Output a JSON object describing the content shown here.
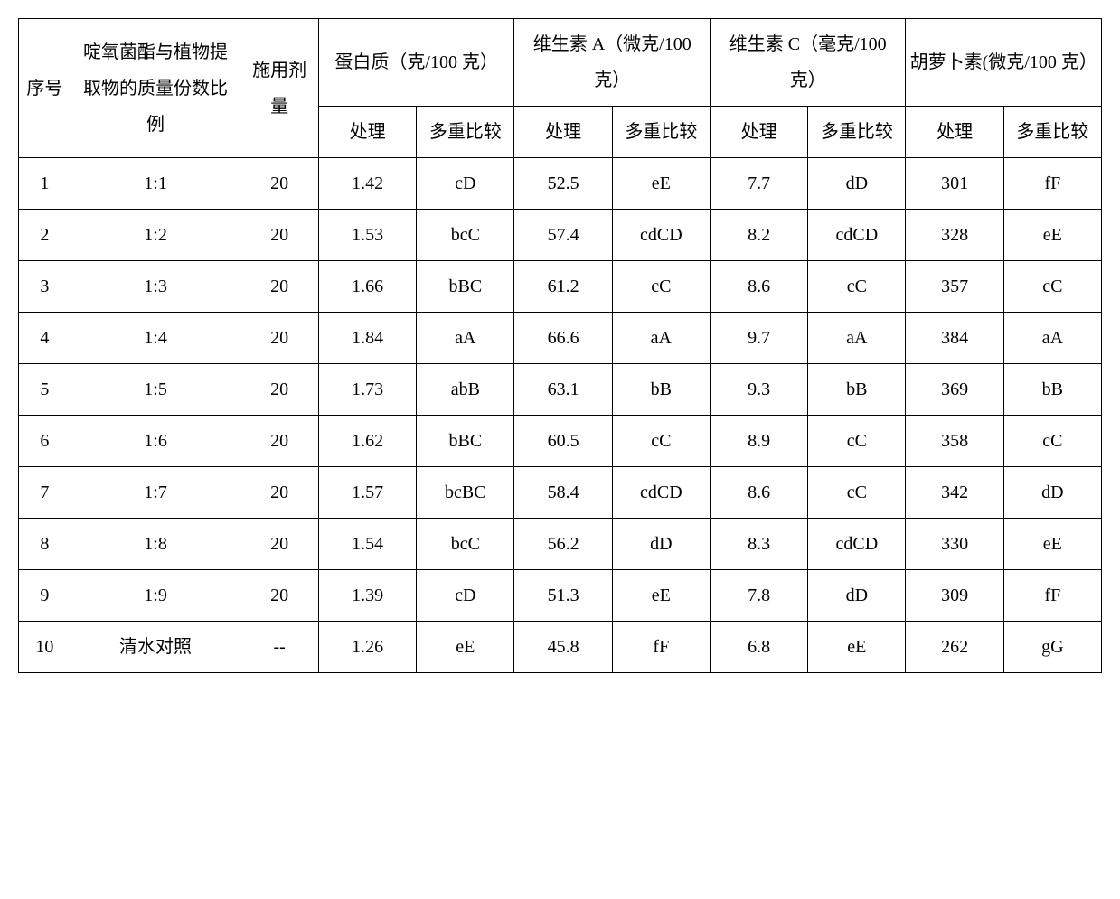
{
  "headers": {
    "seq": "序号",
    "ratio": "啶氧菌酯与植物提取物的质量份数比例",
    "dose": "施用剂量",
    "groups": [
      {
        "title": "蛋白质（克/100 克）",
        "sub1": "处理",
        "sub2": "多重比较"
      },
      {
        "title": "维生素 A（微克/100 克）",
        "sub1": "处理",
        "sub2": "多重比较"
      },
      {
        "title": "维生素 C（毫克/100 克）",
        "sub1": "处理",
        "sub2": "多重比较"
      },
      {
        "title": "胡萝卜素(微克/100 克）",
        "sub1": "处理",
        "sub2": "多重比较"
      }
    ]
  },
  "rows": [
    {
      "seq": "1",
      "ratio": "1:1",
      "dose": "20",
      "v": [
        "1.42",
        "cD",
        "52.5",
        "eE",
        "7.7",
        "dD",
        "301",
        "fF"
      ]
    },
    {
      "seq": "2",
      "ratio": "1:2",
      "dose": "20",
      "v": [
        "1.53",
        "bcC",
        "57.4",
        "cdCD",
        "8.2",
        "cdCD",
        "328",
        "eE"
      ]
    },
    {
      "seq": "3",
      "ratio": "1:3",
      "dose": "20",
      "v": [
        "1.66",
        "bBC",
        "61.2",
        "cC",
        "8.6",
        "cC",
        "357",
        "cC"
      ]
    },
    {
      "seq": "4",
      "ratio": "1:4",
      "dose": "20",
      "v": [
        "1.84",
        "aA",
        "66.6",
        "aA",
        "9.7",
        "aA",
        "384",
        "aA"
      ]
    },
    {
      "seq": "5",
      "ratio": "1:5",
      "dose": "20",
      "v": [
        "1.73",
        "abB",
        "63.1",
        "bB",
        "9.3",
        "bB",
        "369",
        "bB"
      ]
    },
    {
      "seq": "6",
      "ratio": "1:6",
      "dose": "20",
      "v": [
        "1.62",
        "bBC",
        "60.5",
        "cC",
        "8.9",
        "cC",
        "358",
        "cC"
      ]
    },
    {
      "seq": "7",
      "ratio": "1:7",
      "dose": "20",
      "v": [
        "1.57",
        "bcBC",
        "58.4",
        "cdCD",
        "8.6",
        "cC",
        "342",
        "dD"
      ]
    },
    {
      "seq": "8",
      "ratio": "1:8",
      "dose": "20",
      "v": [
        "1.54",
        "bcC",
        "56.2",
        "dD",
        "8.3",
        "cdCD",
        "330",
        "eE"
      ]
    },
    {
      "seq": "9",
      "ratio": "1:9",
      "dose": "20",
      "v": [
        "1.39",
        "cD",
        "51.3",
        "eE",
        "7.8",
        "dD",
        "309",
        "fF"
      ]
    },
    {
      "seq": "10",
      "ratio": "清水对照",
      "dose": "--",
      "v": [
        "1.26",
        "eE",
        "45.8",
        "fF",
        "6.8",
        "eE",
        "262",
        "gG"
      ]
    }
  ],
  "style": {
    "border_color": "#000000",
    "background_color": "#ffffff",
    "text_color": "#000000",
    "font_family": "SimSun",
    "base_fontsize": 20,
    "line_height": 2
  }
}
